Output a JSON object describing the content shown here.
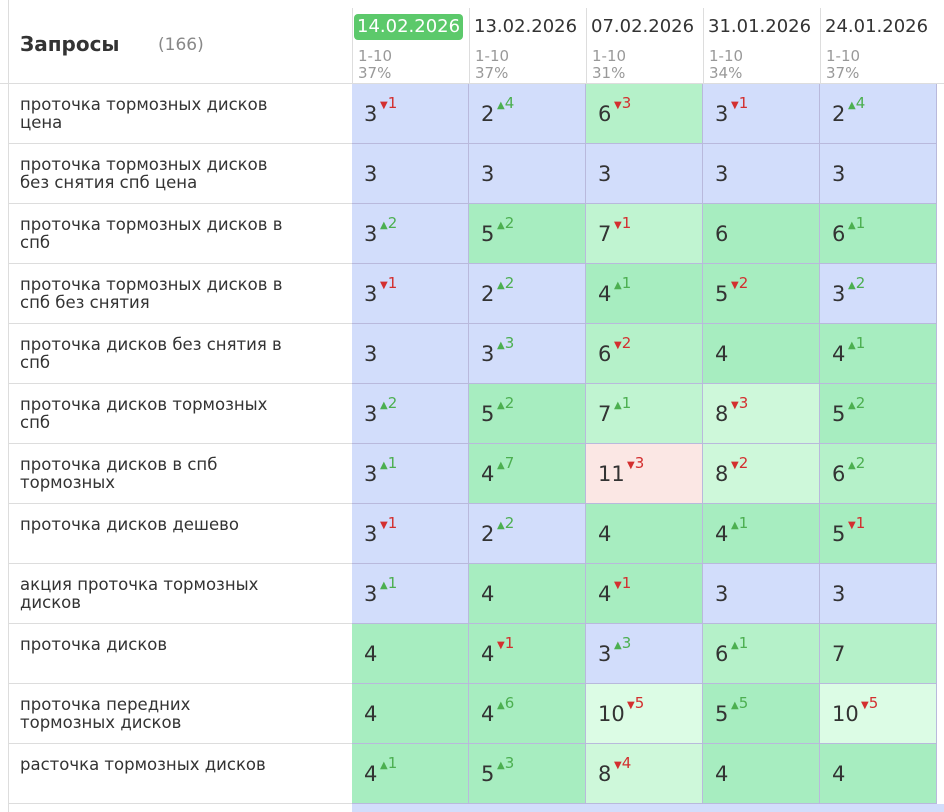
{
  "header": {
    "title": "Запросы",
    "count": "(166)"
  },
  "columns": [
    {
      "date": "14.02.2026",
      "range": "1-10",
      "percent": "37%",
      "highlight": true
    },
    {
      "date": "13.02.2026",
      "range": "1-10",
      "percent": "37%",
      "highlight": false
    },
    {
      "date": "07.02.2026",
      "range": "1-10",
      "percent": "31%",
      "highlight": false
    },
    {
      "date": "31.01.2026",
      "range": "1-10",
      "percent": "34%",
      "highlight": false
    },
    {
      "date": "24.01.2026",
      "range": "1-10",
      "percent": "37%",
      "highlight": false
    }
  ],
  "rows": [
    {
      "query": "проточка тормозных дисков цена",
      "cells": [
        {
          "v": 3,
          "d": 1,
          "dir": "down",
          "bg": "#d2ddfb"
        },
        {
          "v": 2,
          "d": 4,
          "dir": "up",
          "bg": "#d2ddfb"
        },
        {
          "v": 6,
          "d": 3,
          "dir": "down",
          "bg": "#b5f1c9"
        },
        {
          "v": 3,
          "d": 1,
          "dir": "down",
          "bg": "#d2ddfb"
        },
        {
          "v": 2,
          "d": 4,
          "dir": "up",
          "bg": "#d2ddfb"
        }
      ]
    },
    {
      "query": "проточка тормозных дисков без снятия спб цена",
      "cells": [
        {
          "v": 3,
          "bg": "#d2ddfb"
        },
        {
          "v": 3,
          "bg": "#d2ddfb"
        },
        {
          "v": 3,
          "bg": "#d2ddfb"
        },
        {
          "v": 3,
          "bg": "#d2ddfb"
        },
        {
          "v": 3,
          "bg": "#d2ddfb"
        }
      ]
    },
    {
      "query": "проточка тормозных дисков в спб",
      "cells": [
        {
          "v": 3,
          "d": 2,
          "dir": "up",
          "bg": "#d2ddfb"
        },
        {
          "v": 5,
          "d": 2,
          "dir": "up",
          "bg": "#a7edc0"
        },
        {
          "v": 7,
          "d": 1,
          "dir": "down",
          "bg": "#c0f4d1"
        },
        {
          "v": 6,
          "bg": "#a7edc0"
        },
        {
          "v": 6,
          "d": 1,
          "dir": "up",
          "bg": "#a7edc0"
        }
      ]
    },
    {
      "query": "проточка тормозных дисков в спб без снятия",
      "cells": [
        {
          "v": 3,
          "d": 1,
          "dir": "down",
          "bg": "#d2ddfb"
        },
        {
          "v": 2,
          "d": 2,
          "dir": "up",
          "bg": "#d2ddfb"
        },
        {
          "v": 4,
          "d": 1,
          "dir": "up",
          "bg": "#a7edc0"
        },
        {
          "v": 5,
          "d": 2,
          "dir": "down",
          "bg": "#a7edc0"
        },
        {
          "v": 3,
          "d": 2,
          "dir": "up",
          "bg": "#d2ddfb"
        }
      ]
    },
    {
      "query": "проточка дисков без снятия в спб",
      "cells": [
        {
          "v": 3,
          "bg": "#d2ddfb"
        },
        {
          "v": 3,
          "d": 3,
          "dir": "up",
          "bg": "#d2ddfb"
        },
        {
          "v": 6,
          "d": 2,
          "dir": "down",
          "bg": "#b5f1c9"
        },
        {
          "v": 4,
          "bg": "#a7edc0"
        },
        {
          "v": 4,
          "d": 1,
          "dir": "up",
          "bg": "#a7edc0"
        }
      ]
    },
    {
      "query": "проточка дисков тормозных спб",
      "cells": [
        {
          "v": 3,
          "d": 2,
          "dir": "up",
          "bg": "#d2ddfb"
        },
        {
          "v": 5,
          "d": 2,
          "dir": "up",
          "bg": "#a7edc0"
        },
        {
          "v": 7,
          "d": 1,
          "dir": "up",
          "bg": "#c0f4d1"
        },
        {
          "v": 8,
          "d": 3,
          "dir": "down",
          "bg": "#cef8da"
        },
        {
          "v": 5,
          "d": 2,
          "dir": "up",
          "bg": "#a7edc0"
        }
      ]
    },
    {
      "query": "проточка дисков в спб тормозных",
      "cells": [
        {
          "v": 3,
          "d": 1,
          "dir": "up",
          "bg": "#d2ddfb"
        },
        {
          "v": 4,
          "d": 7,
          "dir": "up",
          "bg": "#a7edc0"
        },
        {
          "v": 11,
          "d": 3,
          "dir": "down",
          "bg": "#fbe7e4"
        },
        {
          "v": 8,
          "d": 2,
          "dir": "down",
          "bg": "#cef8da"
        },
        {
          "v": 6,
          "d": 2,
          "dir": "up",
          "bg": "#b5f1c9"
        }
      ]
    },
    {
      "query": "проточка дисков дешево",
      "cells": [
        {
          "v": 3,
          "d": 1,
          "dir": "down",
          "bg": "#d2ddfb"
        },
        {
          "v": 2,
          "d": 2,
          "dir": "up",
          "bg": "#d2ddfb"
        },
        {
          "v": 4,
          "bg": "#a7edc0"
        },
        {
          "v": 4,
          "d": 1,
          "dir": "up",
          "bg": "#a7edc0"
        },
        {
          "v": 5,
          "d": 1,
          "dir": "down",
          "bg": "#a7edc0"
        }
      ]
    },
    {
      "query": "акция проточка тормозных дисков",
      "cells": [
        {
          "v": 3,
          "d": 1,
          "dir": "up",
          "bg": "#d2ddfb"
        },
        {
          "v": 4,
          "bg": "#a7edc0"
        },
        {
          "v": 4,
          "d": 1,
          "dir": "down",
          "bg": "#a7edc0"
        },
        {
          "v": 3,
          "bg": "#d2ddfb"
        },
        {
          "v": 3,
          "bg": "#d2ddfb"
        }
      ]
    },
    {
      "query": "проточка дисков",
      "cells": [
        {
          "v": 4,
          "bg": "#a7edc0"
        },
        {
          "v": 4,
          "d": 1,
          "dir": "down",
          "bg": "#a7edc0"
        },
        {
          "v": 3,
          "d": 3,
          "dir": "up",
          "bg": "#d2ddfb"
        },
        {
          "v": 6,
          "d": 1,
          "dir": "up",
          "bg": "#b5f1c9"
        },
        {
          "v": 7,
          "bg": "#b5f1c9"
        }
      ]
    },
    {
      "query": "проточка передних тормозных дисков",
      "cells": [
        {
          "v": 4,
          "bg": "#a7edc0"
        },
        {
          "v": 4,
          "d": 6,
          "dir": "up",
          "bg": "#a7edc0"
        },
        {
          "v": 10,
          "d": 5,
          "dir": "down",
          "bg": "#dcfce5"
        },
        {
          "v": 5,
          "d": 5,
          "dir": "up",
          "bg": "#a7edc0"
        },
        {
          "v": 10,
          "d": 5,
          "dir": "down",
          "bg": "#dcfce5"
        }
      ]
    },
    {
      "query": "расточка тормозных дисков",
      "cells": [
        {
          "v": 4,
          "d": 1,
          "dir": "up",
          "bg": "#a7edc0"
        },
        {
          "v": 5,
          "d": 3,
          "dir": "up",
          "bg": "#a7edc0"
        },
        {
          "v": 8,
          "d": 4,
          "dir": "down",
          "bg": "#cef8da"
        },
        {
          "v": 4,
          "bg": "#a7edc0"
        },
        {
          "v": 4,
          "bg": "#a7edc0"
        }
      ]
    }
  ]
}
